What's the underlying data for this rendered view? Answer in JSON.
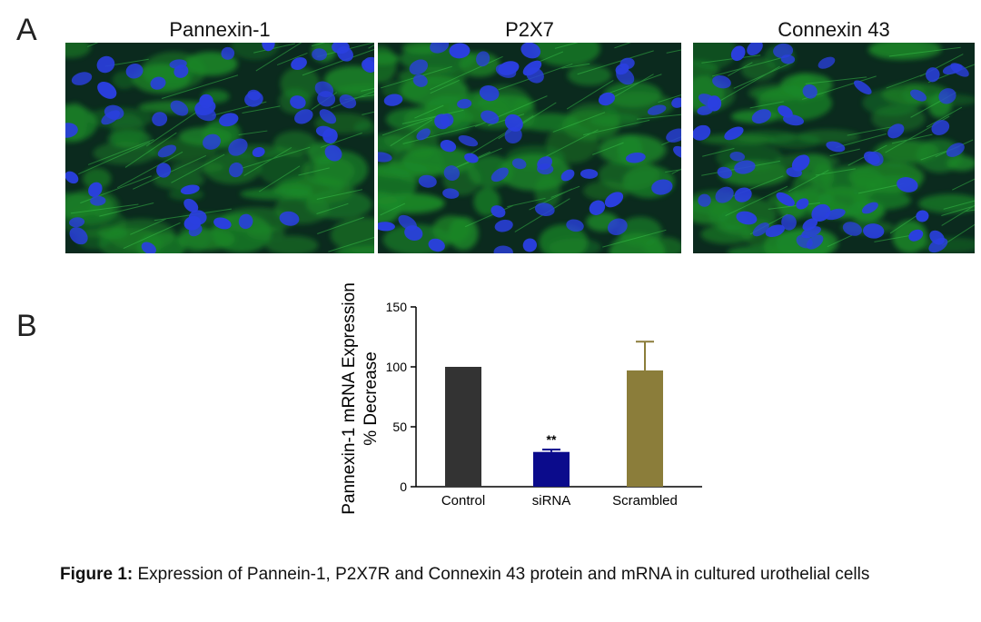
{
  "panels": {
    "a_label": "A",
    "b_label": "B"
  },
  "micrographs": [
    {
      "title": "Pannexin-1"
    },
    {
      "title": "P2X7"
    },
    {
      "title": "Connexin 43"
    }
  ],
  "stain_colors": {
    "cytoplasm": "#1f9a2a",
    "nucleus": "#2a3fe0",
    "background": "#0b2a1e"
  },
  "chart_data": {
    "type": "bar",
    "categories": [
      "Control",
      "siRNA",
      "Scrambled"
    ],
    "values": [
      100,
      29,
      97
    ],
    "error_upper": [
      0,
      2,
      24
    ],
    "colors": [
      "#333333",
      "#0b0b8c",
      "#8b7d3a"
    ],
    "ylabel_line1": "Pannexin-1 mRNA Expression",
    "ylabel_line2": "% Decrease",
    "ylim": [
      0,
      150
    ],
    "yticks": [
      "0",
      "50",
      "100",
      "150"
    ],
    "annotation": "**",
    "grid": false
  },
  "caption": {
    "label": "Figure 1:",
    "text": " Expression of Pannein-1, P2X7R and Connexin 43 protein and mRNA in cultured urothelial cells"
  }
}
